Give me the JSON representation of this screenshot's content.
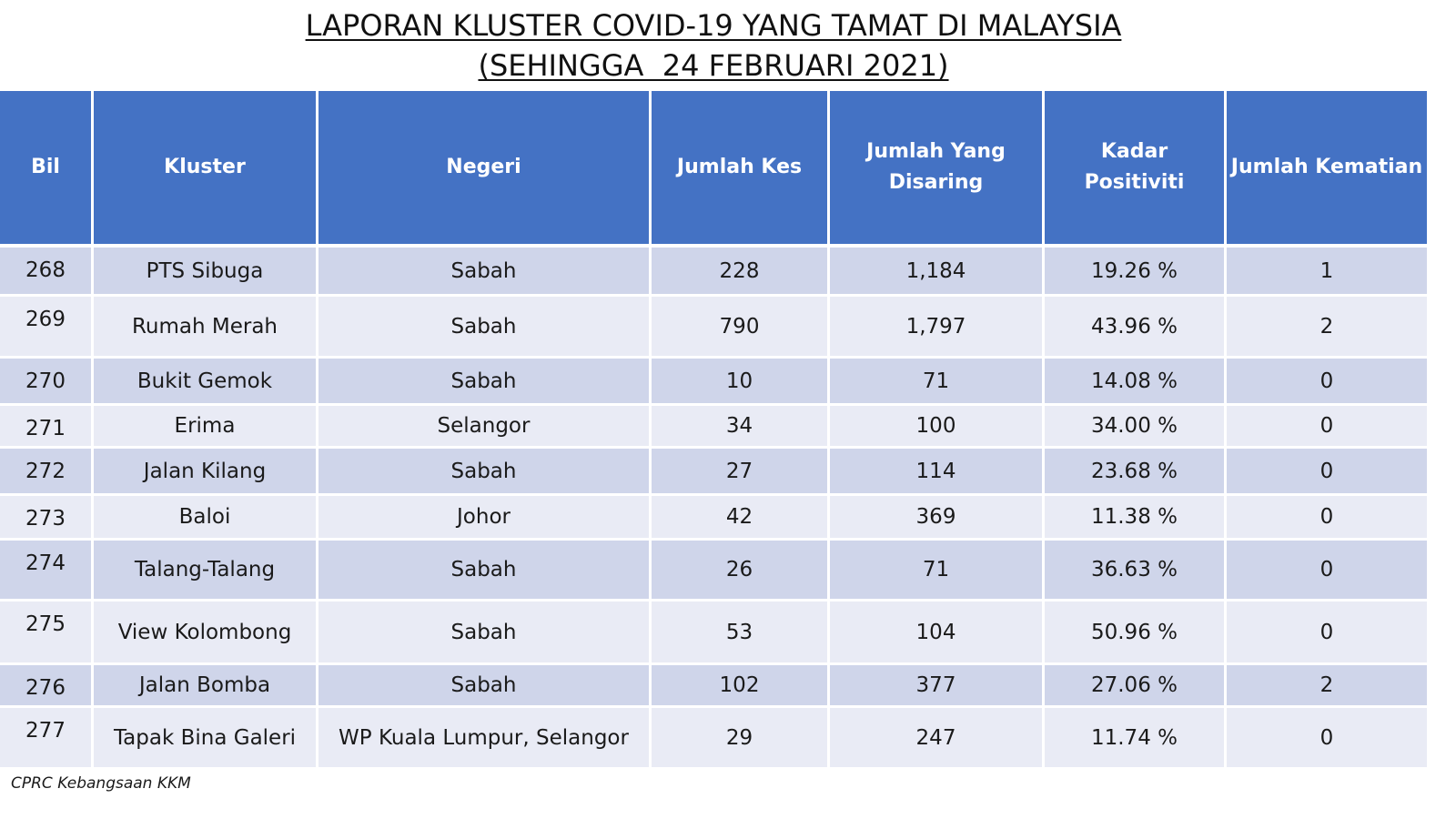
{
  "title": {
    "line1": "LAPORAN KLUSTER COVID-19 YANG TAMAT DI MALAYSIA",
    "line2": "(SEHINGGA  24 FEBRUARI 2021)"
  },
  "table": {
    "headers": {
      "bil": "Bil",
      "kluster": "Kluster",
      "negeri": "Negeri",
      "jumlah_kes": "Jumlah Kes",
      "jumlah_disaring_1": "Jumlah Yang",
      "jumlah_disaring_2": "Disaring",
      "kadar_positiviti": "Kadar Positiviti",
      "jumlah_kematian": "Jumlah Kematian"
    },
    "rows": [
      {
        "bil": "268",
        "kluster": "PTS Sibuga",
        "negeri": "Sabah",
        "kes": "228",
        "disaring": "1,184",
        "positiviti": "19.26 %",
        "kematian": "1"
      },
      {
        "bil": "269",
        "kluster": "Rumah Merah",
        "negeri": "Sabah",
        "kes": "790",
        "disaring": "1,797",
        "positiviti": "43.96 %",
        "kematian": "2"
      },
      {
        "bil": "270",
        "kluster": "Bukit Gemok",
        "negeri": "Sabah",
        "kes": "10",
        "disaring": "71",
        "positiviti": "14.08 %",
        "kematian": "0"
      },
      {
        "bil": "271",
        "kluster": "Erima",
        "negeri": "Selangor",
        "kes": "34",
        "disaring": "100",
        "positiviti": "34.00 %",
        "kematian": "0"
      },
      {
        "bil": "272",
        "kluster": "Jalan Kilang",
        "negeri": "Sabah",
        "kes": "27",
        "disaring": "114",
        "positiviti": "23.68 %",
        "kematian": "0"
      },
      {
        "bil": "273",
        "kluster": "Baloi",
        "negeri": "Johor",
        "kes": "42",
        "disaring": "369",
        "positiviti": "11.38 %",
        "kematian": "0"
      },
      {
        "bil": "274",
        "kluster": "Talang-Talang",
        "negeri": "Sabah",
        "kes": "26",
        "disaring": "71",
        "positiviti": "36.63 %",
        "kematian": "0"
      },
      {
        "bil": "275",
        "kluster": "View Kolombong",
        "negeri": "Sabah",
        "kes": "53",
        "disaring": "104",
        "positiviti": "50.96 %",
        "kematian": "0"
      },
      {
        "bil": "276",
        "kluster": "Jalan Bomba",
        "negeri": "Sabah",
        "kes": "102",
        "disaring": "377",
        "positiviti": "27.06 %",
        "kematian": "2"
      },
      {
        "bil": "277",
        "kluster": "Tapak Bina Galeri",
        "negeri": "WP Kuala Lumpur, Selangor",
        "kes": "29",
        "disaring": "247",
        "positiviti": "11.74 %",
        "kematian": "0"
      }
    ]
  },
  "footer": {
    "source": "CPRC Kebangsaan KKM"
  },
  "colors": {
    "header_bg": "#4472c4",
    "row_dark": "#cfd5ea",
    "row_light": "#e9ebf5"
  }
}
